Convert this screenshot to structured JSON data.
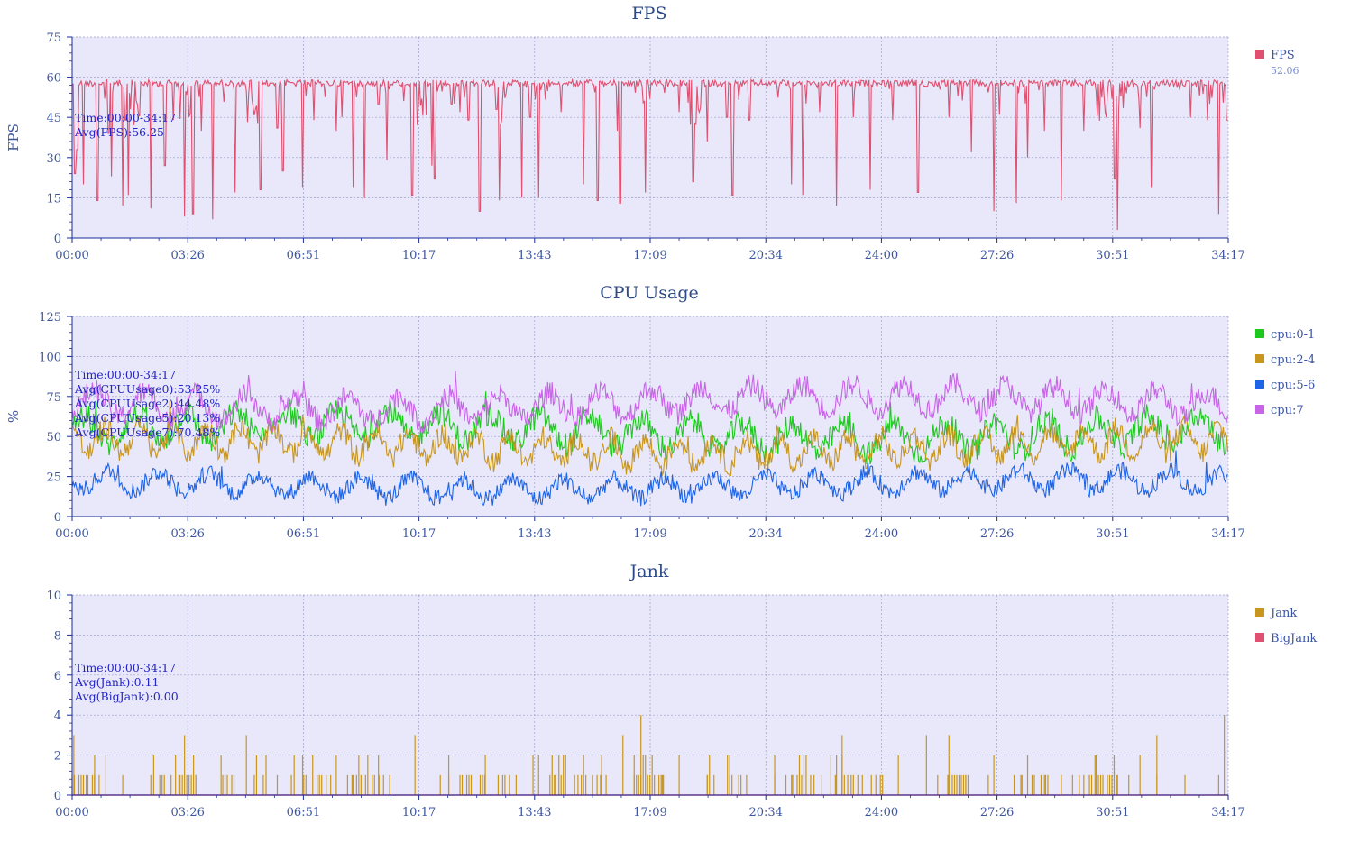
{
  "chart_data": [
    {
      "type": "line",
      "title": "FPS",
      "ylabel": "FPS",
      "xlabel": "",
      "ylim": [
        0,
        75
      ],
      "yticks": [
        0,
        15,
        30,
        45,
        60,
        75
      ],
      "x_tick_labels": [
        "00:00",
        "03:26",
        "06:51",
        "10:17",
        "13:43",
        "17:09",
        "20:34",
        "24:00",
        "27:26",
        "30:51",
        "34:17"
      ],
      "x_range_seconds": [
        0,
        2057
      ],
      "grid": true,
      "legend_position": "right",
      "series": [
        {
          "name": "FPS",
          "legend_value": "52.06",
          "color": "#e05070",
          "baseline": 59,
          "dips": [
            [
              0.005,
              24
            ],
            [
              0.009,
              33
            ],
            [
              0.02,
              20
            ],
            [
              0.045,
              14
            ],
            [
              0.065,
              39
            ],
            [
              0.07,
              23
            ],
            [
              0.09,
              12
            ],
            [
              0.095,
              44
            ],
            [
              0.1,
              16
            ],
            [
              0.14,
              11
            ],
            [
              0.165,
              27
            ],
            [
              0.18,
              44
            ],
            [
              0.2,
              8
            ],
            [
              0.215,
              9
            ],
            [
              0.23,
              40
            ],
            [
              0.25,
              7
            ],
            [
              0.29,
              17
            ],
            [
              0.335,
              18
            ],
            [
              0.365,
              41
            ],
            [
              0.375,
              25
            ],
            [
              0.41,
              19
            ],
            [
              0.43,
              44
            ],
            [
              0.47,
              40
            ],
            [
              0.48,
              45
            ],
            [
              0.5,
              19
            ],
            [
              0.52,
              15
            ],
            [
              0.545,
              50
            ],
            [
              0.56,
              29
            ],
            [
              0.605,
              16
            ],
            [
              0.64,
              27
            ],
            [
              0.645,
              22
            ],
            [
              0.675,
              50
            ],
            [
              0.69,
              47
            ],
            [
              0.705,
              44
            ],
            [
              0.725,
              10
            ],
            [
              0.755,
              48
            ],
            [
              0.76,
              14
            ],
            [
              0.8,
              15
            ],
            [
              0.815,
              45
            ],
            [
              0.83,
              15
            ],
            [
              0.87,
              47
            ],
            [
              0.91,
              20
            ],
            [
              0.935,
              14
            ],
            [
              0.97,
              40
            ],
            [
              0.975,
              13
            ],
            [
              1.02,
              17
            ],
            [
              1.08,
              47
            ],
            [
              1.105,
              21
            ],
            [
              1.13,
              36
            ],
            [
              1.165,
              45
            ],
            [
              1.175,
              16
            ],
            [
              1.205,
              44
            ],
            [
              1.28,
              20
            ],
            [
              1.3,
              16
            ],
            [
              1.33,
              47
            ],
            [
              1.36,
              12
            ],
            [
              1.39,
              45
            ],
            [
              1.42,
              18
            ],
            [
              1.46,
              44
            ],
            [
              1.505,
              17
            ],
            [
              1.56,
              45
            ],
            [
              1.6,
              32
            ],
            [
              1.64,
              10
            ],
            [
              1.65,
              46
            ],
            [
              1.68,
              13
            ],
            [
              1.7,
              30
            ],
            [
              1.73,
              40
            ],
            [
              1.76,
              14
            ],
            [
              1.8,
              40
            ],
            [
              1.84,
              45
            ],
            [
              1.855,
              22
            ],
            [
              1.86,
              3
            ],
            [
              1.9,
              41
            ],
            [
              1.92,
              19
            ],
            [
              1.99,
              45
            ],
            [
              2.02,
              44
            ],
            [
              2.04,
              9
            ],
            [
              2.055,
              44
            ]
          ],
          "dense_dip_ranges": [
            [
              0.1,
              0.12
            ],
            [
              0.19,
              0.21
            ],
            [
              0.31,
              0.33
            ],
            [
              0.61,
              0.63
            ],
            [
              0.76,
              0.78
            ],
            [
              1.1,
              1.12
            ],
            [
              1.82,
              1.88
            ]
          ]
        }
      ],
      "annotation": [
        "Time:00:00-34:17",
        "Avg(FPS):56.25"
      ]
    },
    {
      "type": "line",
      "title": "CPU Usage",
      "ylabel": "%",
      "xlabel": "",
      "ylim": [
        0,
        125
      ],
      "yticks": [
        0,
        25,
        50,
        75,
        100,
        125
      ],
      "x_tick_labels": [
        "00:00",
        "03:26",
        "06:51",
        "10:17",
        "13:43",
        "17:09",
        "20:34",
        "24:00",
        "27:26",
        "30:51",
        "34:17"
      ],
      "x_range_seconds": [
        0,
        2057
      ],
      "grid": true,
      "legend_position": "right",
      "series": [
        {
          "name": "cpu:0-1",
          "color": "#1ec81e",
          "mean": 53,
          "amplitude": 9,
          "period_s": 90
        },
        {
          "name": "cpu:2-4",
          "color": "#c8961e",
          "mean": 44,
          "amplitude": 8,
          "period_s": 60
        },
        {
          "name": "cpu:5-6",
          "color": "#1e64e6",
          "mean": 20,
          "amplitude": 6,
          "period_s": 90
        },
        {
          "name": "cpu:7",
          "color": "#c864e6",
          "mean": 71,
          "amplitude": 8,
          "period_s": 90
        }
      ],
      "annotation": [
        "Time:00:00-34:17",
        "Avg(CPUUsage0):53.25%",
        "Avg(CPUUsage2):44.48%",
        "Avg(CPUUsage5):20.13%",
        "Avg(CPUUsage7):70.48%"
      ]
    },
    {
      "type": "bar",
      "title": "Jank",
      "ylabel": "",
      "xlabel": "",
      "ylim": [
        0,
        10
      ],
      "yticks": [
        0,
        2,
        4,
        6,
        8,
        10
      ],
      "x_tick_labels": [
        "00:00",
        "03:26",
        "06:51",
        "10:17",
        "13:43",
        "17:09",
        "20:34",
        "24:00",
        "27:26",
        "30:51",
        "34:17"
      ],
      "x_range_seconds": [
        0,
        2057
      ],
      "grid": true,
      "legend_position": "right",
      "series": [
        {
          "name": "Jank",
          "color": "#c8961e",
          "spikes": [
            [
              0.003,
              3
            ],
            [
              0.025,
              1
            ],
            [
              0.04,
              1
            ],
            [
              0.04,
              2
            ],
            [
              0.06,
              2
            ],
            [
              0.09,
              1
            ],
            [
              0.145,
              2
            ],
            [
              0.19,
              1
            ],
            [
              0.2,
              3
            ],
            [
              0.22,
              1
            ],
            [
              0.265,
              2
            ],
            [
              0.31,
              3
            ],
            [
              0.34,
              1
            ],
            [
              0.345,
              2
            ],
            [
              0.365,
              1
            ],
            [
              0.39,
              1
            ],
            [
              0.395,
              2
            ],
            [
              0.41,
              2
            ],
            [
              0.44,
              1
            ],
            [
              0.47,
              2
            ],
            [
              0.5,
              1
            ],
            [
              0.545,
              2
            ],
            [
              0.565,
              1
            ],
            [
              0.61,
              3
            ],
            [
              0.655,
              1
            ],
            [
              0.67,
              2
            ],
            [
              0.73,
              1
            ],
            [
              0.735,
              2
            ],
            [
              0.79,
              1
            ],
            [
              0.82,
              2
            ],
            [
              0.83,
              2
            ],
            [
              0.86,
              1
            ],
            [
              0.9,
              1
            ],
            [
              0.91,
              2
            ],
            [
              0.94,
              1
            ],
            [
              1.0,
              2
            ],
            [
              1.05,
              1
            ],
            [
              1.08,
              2
            ],
            [
              1.13,
              1
            ],
            [
              1.17,
              2
            ],
            [
              1.2,
              1
            ],
            [
              1.25,
              2
            ],
            [
              1.28,
              1
            ],
            [
              1.32,
              1
            ],
            [
              1.36,
              2
            ],
            [
              1.38,
              1
            ],
            [
              1.43,
              1
            ],
            [
              1.47,
              2
            ],
            [
              1.54,
              1
            ],
            [
              1.56,
              1
            ],
            [
              1.59,
              1
            ],
            [
              1.63,
              1
            ],
            [
              1.64,
              2
            ],
            [
              1.69,
              1
            ],
            [
              1.73,
              1
            ],
            [
              1.76,
              1
            ],
            [
              1.81,
              1
            ],
            [
              1.82,
              2
            ],
            [
              1.86,
              1
            ],
            [
              1.88,
              1
            ],
            [
              1.9,
              2
            ],
            [
              1.93,
              1
            ],
            [
              1.98,
              1
            ],
            [
              2.04,
              1
            ]
          ],
          "tall_spikes": [
            [
              0.98,
              3
            ],
            [
              1.012,
              4
            ],
            [
              1.37,
              2
            ],
            [
              1.37,
              3
            ],
            [
              1.52,
              3
            ],
            [
              1.56,
              3
            ],
            [
              1.93,
              3
            ],
            [
              2.05,
              4
            ]
          ],
          "dense_ranges": [
            [
              0.0,
              0.06
            ],
            [
              0.14,
              0.22
            ],
            [
              0.26,
              0.33
            ],
            [
              0.38,
              0.46
            ],
            [
              0.49,
              0.56
            ],
            [
              0.67,
              0.74
            ],
            [
              0.75,
              0.8
            ],
            [
              0.85,
              0.98
            ],
            [
              1.0,
              1.06
            ],
            [
              1.13,
              1.2
            ],
            [
              1.25,
              1.36
            ],
            [
              1.37,
              1.45
            ],
            [
              1.55,
              1.6
            ],
            [
              1.66,
              1.74
            ],
            [
              1.76,
              1.8
            ],
            [
              1.81,
              1.86
            ]
          ]
        },
        {
          "name": "BigJank",
          "color": "#e05070",
          "value": 0
        }
      ],
      "annotation": [
        "Time:00:00-34:17",
        "Avg(Jank):0.11",
        "Avg(BigJank):0.00"
      ]
    }
  ]
}
